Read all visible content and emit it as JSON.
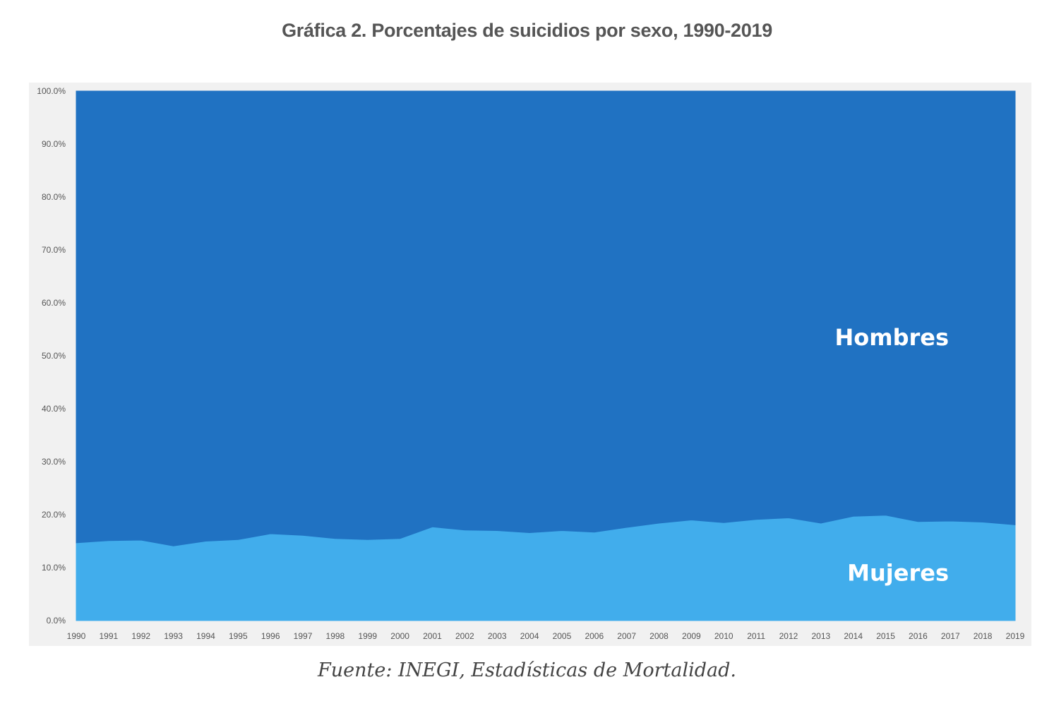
{
  "chart_data": {
    "type": "area",
    "stacked": "percent",
    "title": "Gráfica 2. Porcentajes de suicidios por sexo, 1990-2019",
    "source": "Fuente: INEGI, Estadísticas de Mortalidad.",
    "xlabel": "",
    "ylabel": "",
    "ylim": [
      0,
      100
    ],
    "y_ticks": [
      0,
      10,
      20,
      30,
      40,
      50,
      60,
      70,
      80,
      90,
      100
    ],
    "y_tick_labels": [
      "0.0%",
      "10.0%",
      "20.0%",
      "30.0%",
      "40.0%",
      "50.0%",
      "60.0%",
      "70.0%",
      "80.0%",
      "90.0%",
      "100.0%"
    ],
    "categories": [
      "1990",
      "1991",
      "1992",
      "1993",
      "1994",
      "1995",
      "1996",
      "1997",
      "1998",
      "1999",
      "2000",
      "2001",
      "2002",
      "2003",
      "2004",
      "2005",
      "2006",
      "2007",
      "2008",
      "2009",
      "2010",
      "2011",
      "2012",
      "2013",
      "2014",
      "2015",
      "2016",
      "2017",
      "2018",
      "2019"
    ],
    "series": [
      {
        "name": "Mujeres",
        "label": "Mujeres",
        "color": "#41adec",
        "values": [
          14.7,
          15.1,
          15.2,
          14.1,
          15.0,
          15.3,
          16.4,
          16.1,
          15.5,
          15.3,
          15.5,
          17.7,
          17.1,
          17.0,
          16.6,
          17.0,
          16.7,
          17.6,
          18.4,
          19.0,
          18.5,
          19.1,
          19.4,
          18.4,
          19.7,
          19.9,
          18.7,
          18.8,
          18.6,
          18.1
        ]
      },
      {
        "name": "Hombres",
        "label": "Hombres",
        "color": "#2072c2",
        "values": [
          85.3,
          84.9,
          84.8,
          85.9,
          85.0,
          84.7,
          83.6,
          83.9,
          84.5,
          84.7,
          84.5,
          82.3,
          82.9,
          83.0,
          83.4,
          83.0,
          83.3,
          82.4,
          81.6,
          81.0,
          81.5,
          80.9,
          80.6,
          81.6,
          80.3,
          80.1,
          81.3,
          81.2,
          81.4,
          81.9
        ]
      }
    ],
    "grid": false,
    "legend": "none"
  }
}
